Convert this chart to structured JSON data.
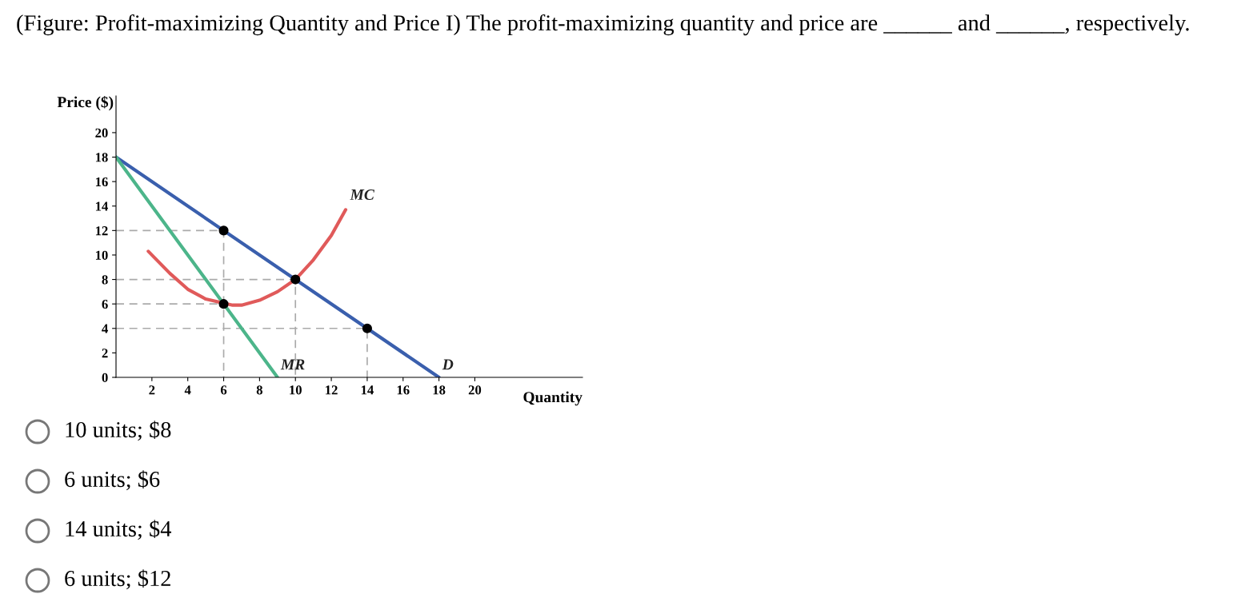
{
  "chart_data": {
    "type": "line",
    "title": "(Figure: Profit-maximizing Quantity and Price I) The profit-maximizing quantity and price are ______ and ______, respectively.",
    "xlabel": "Quantity",
    "ylabel": "Price ($)",
    "xlim": [
      0,
      26
    ],
    "ylim": [
      0,
      23
    ],
    "xticks": [
      2,
      4,
      6,
      8,
      10,
      12,
      14,
      16,
      18,
      20
    ],
    "yticks": [
      0,
      2,
      4,
      6,
      8,
      10,
      12,
      14,
      16,
      18,
      20
    ],
    "grid": false,
    "legend": false,
    "tick_labels": [
      "x",
      "y"
    ],
    "series": [
      {
        "color": "#aaaaaa",
        "line_style": "dashed",
        "x": [
          0,
          6,
          6
        ],
        "values": [
          12,
          12,
          0
        ]
      },
      {
        "color": "#aaaaaa",
        "line_style": "dashed",
        "x": [
          0,
          10,
          10
        ],
        "values": [
          8,
          8,
          0
        ]
      },
      {
        "color": "#aaaaaa",
        "line_style": "dashed",
        "x": [
          0,
          6
        ],
        "values": [
          6,
          6
        ]
      },
      {
        "color": "#aaaaaa",
        "line_style": "dashed",
        "x": [
          0,
          14,
          14
        ],
        "values": [
          4,
          4,
          0
        ]
      },
      {
        "name": "D",
        "color": "#3a5fad",
        "x": [
          0,
          18
        ],
        "values": [
          18,
          0
        ]
      },
      {
        "name": "MR",
        "color": "#4cb58a",
        "x": [
          0,
          9
        ],
        "values": [
          18,
          0
        ]
      },
      {
        "name": "MC",
        "color": "#e05a5a",
        "x": [
          1.8,
          3,
          4,
          5,
          6.5,
          7,
          8,
          9,
          10,
          11,
          12,
          12.8
        ],
        "values": [
          10.3,
          8.5,
          7.2,
          6.4,
          5.9,
          5.9,
          6.3,
          7.0,
          8.0,
          9.6,
          11.6,
          13.7
        ]
      },
      {
        "type": "scatter",
        "color": "#000000",
        "marker": "circle",
        "x": [
          6,
          6,
          10,
          14
        ],
        "values": [
          12,
          6,
          8,
          4
        ]
      }
    ],
    "annotations": [
      "10 units; $8",
      "6 units; $6",
      "14 units; $4",
      "6 units; $12"
    ]
  }
}
